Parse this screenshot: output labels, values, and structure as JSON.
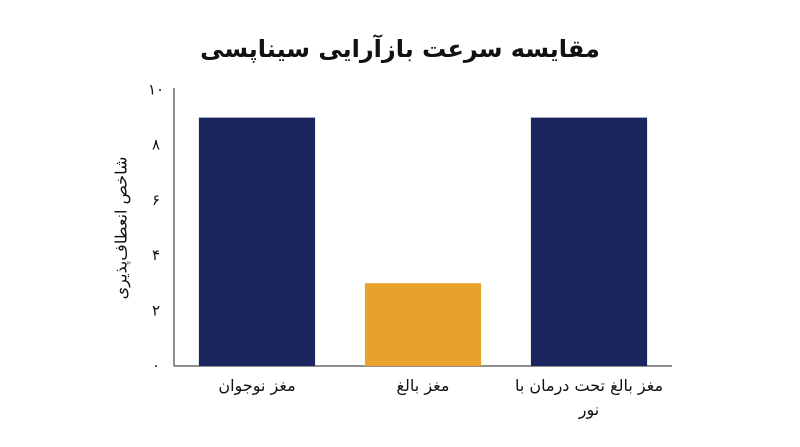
{
  "chart_data": {
    "type": "bar",
    "title": "مقایسه سرعت بازآرایی سیناپسی",
    "y_label": "شاخص انعطاف‌پذیری",
    "categories": [
      "مغز نوجوان",
      "مغز بالغ",
      "مغز بالغ تحت درمان با نور"
    ],
    "values": [
      9,
      3,
      9
    ],
    "colors": [
      "#1b2660",
      "#e8a22c",
      "#1b2660"
    ],
    "ylim": [
      0,
      10
    ],
    "yticks": [
      {
        "value": 0,
        "label": "۰"
      },
      {
        "value": 2,
        "label": "۲"
      },
      {
        "value": 4,
        "label": "۴"
      },
      {
        "value": 6,
        "label": "۶"
      },
      {
        "value": 8,
        "label": "۸"
      },
      {
        "value": 10,
        "label": "۱۰"
      }
    ],
    "grid": false
  }
}
